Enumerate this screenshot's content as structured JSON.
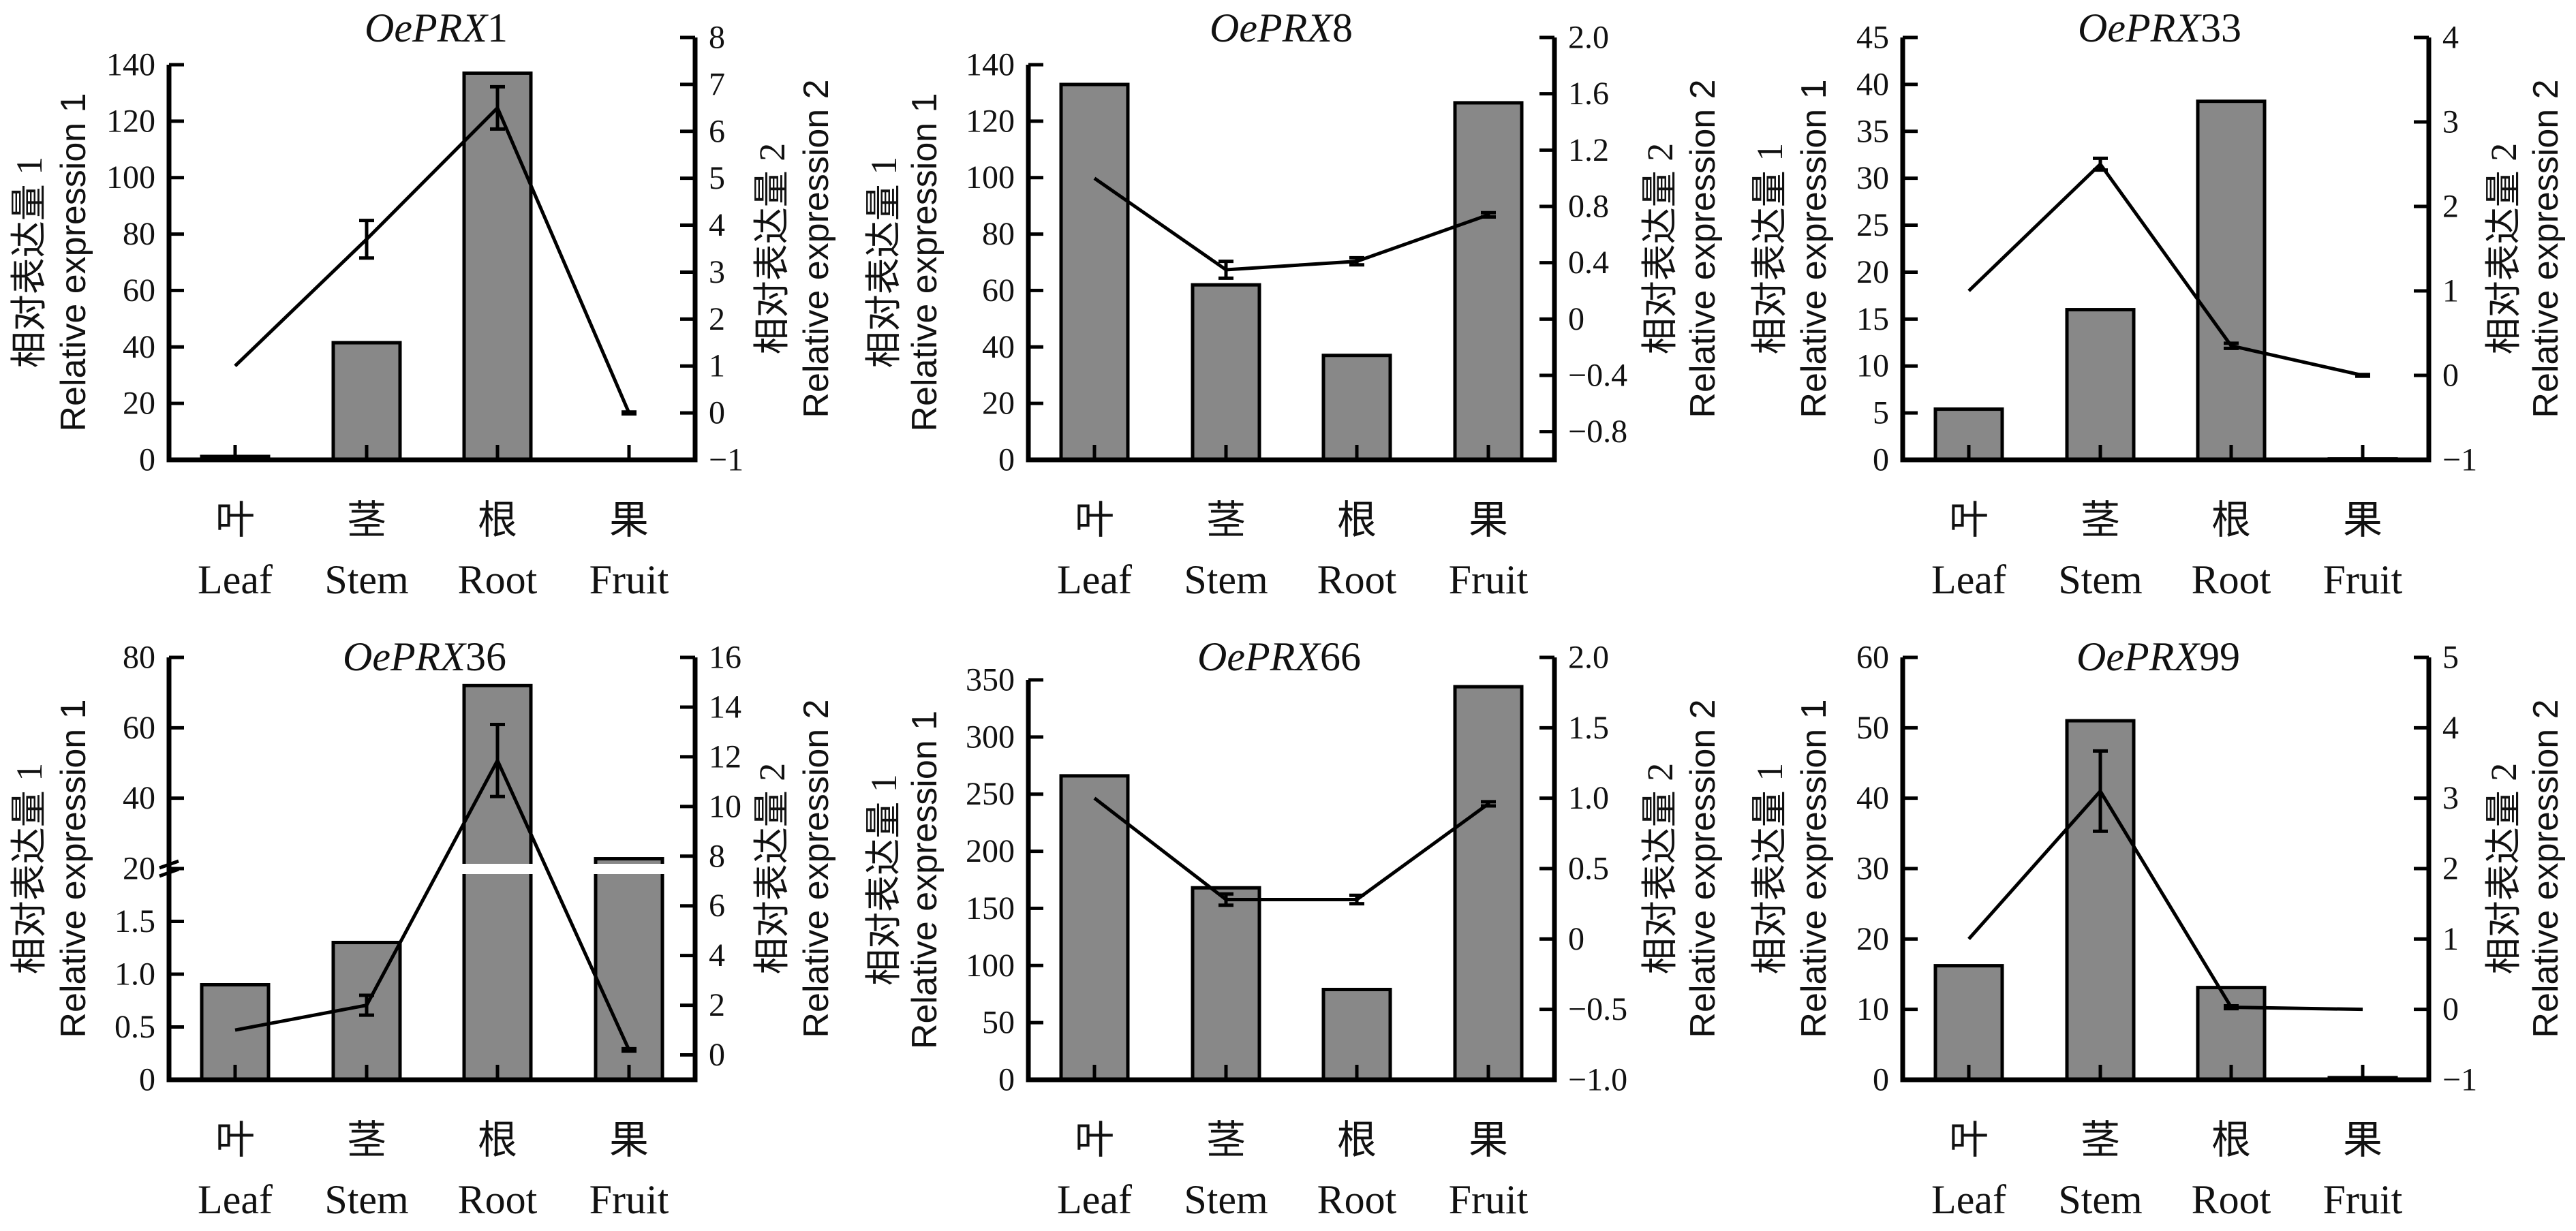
{
  "figure": {
    "background": "#ffffff",
    "bar_color": "#888888",
    "line_color": "#000000"
  },
  "categories": {
    "cn": [
      "叶",
      "茎",
      "根",
      "果"
    ],
    "en": [
      "Leaf",
      "Stem",
      "Root",
      "Fruit"
    ]
  },
  "axis_titles": {
    "left_cn": "相对表达量 1",
    "left_en": "Relative expression 1",
    "right_cn": "相对表达量 2",
    "right_en": "Relative expression 2"
  },
  "chart_data": [
    {
      "type": "bar",
      "title_prefix": "OePRX",
      "title_number": "1",
      "categories": [
        "Leaf",
        "Stem",
        "Root",
        "Fruit"
      ],
      "series": [
        {
          "name": "Relative expression 1",
          "type": "bar",
          "axis": "left",
          "values": [
            1.2,
            41.5,
            137,
            0
          ]
        },
        {
          "name": "Relative expression 2",
          "type": "line",
          "axis": "right",
          "values": [
            1.0,
            3.7,
            6.5,
            0.0
          ],
          "error": [
            0,
            0.4,
            0.45,
            0.02
          ]
        }
      ],
      "y_left": {
        "range": [
          0,
          140
        ],
        "ticks": [
          0,
          20,
          40,
          60,
          80,
          100,
          120,
          140
        ],
        "tick_labels": [
          "0",
          "20",
          "40",
          "60",
          "80",
          "100",
          "120",
          "140"
        ]
      },
      "y_right": {
        "range": [
          -1,
          8
        ],
        "ticks": [
          -1,
          0,
          1,
          2,
          3,
          4,
          5,
          6,
          7,
          8
        ],
        "tick_labels": [
          "−1",
          "0",
          "1",
          "2",
          "3",
          "4",
          "5",
          "6",
          "7",
          "8"
        ]
      }
    },
    {
      "type": "bar",
      "title_prefix": "OePRX",
      "title_number": "8",
      "categories": [
        "Leaf",
        "Stem",
        "Root",
        "Fruit"
      ],
      "series": [
        {
          "name": "Relative expression 1",
          "type": "bar",
          "axis": "left",
          "values": [
            133,
            62,
            37,
            126.5
          ]
        },
        {
          "name": "Relative expression 2",
          "type": "line",
          "axis": "right",
          "values": [
            1.0,
            0.35,
            0.41,
            0.74
          ],
          "error": [
            0,
            0.06,
            0.025,
            0.015
          ]
        }
      ],
      "y_left": {
        "range": [
          0,
          140
        ],
        "ticks": [
          0,
          20,
          40,
          60,
          80,
          100,
          120,
          140
        ],
        "tick_labels": [
          "0",
          "20",
          "40",
          "60",
          "80",
          "100",
          "120",
          "140"
        ]
      },
      "y_right": {
        "range": [
          -1.0,
          2.0
        ],
        "ticks": [
          -0.8,
          -0.4,
          0,
          0.4,
          0.8,
          1.2,
          1.6,
          2.0
        ],
        "tick_labels": [
          "−0.8",
          "−0.4",
          "0",
          "0.4",
          "0.8",
          "1.2",
          "1.6",
          "2.0"
        ]
      }
    },
    {
      "type": "bar",
      "title_prefix": "OePRX",
      "title_number": "33",
      "categories": [
        "Leaf",
        "Stem",
        "Root",
        "Fruit"
      ],
      "series": [
        {
          "name": "Relative expression 1",
          "type": "bar",
          "axis": "left",
          "values": [
            5.4,
            16.0,
            38.2,
            0.1
          ]
        },
        {
          "name": "Relative expression 2",
          "type": "line",
          "axis": "right",
          "values": [
            1.0,
            2.5,
            0.35,
            0.0
          ],
          "error": [
            0,
            0.07,
            0.03,
            0.01
          ]
        }
      ],
      "y_left": {
        "range": [
          0,
          45
        ],
        "ticks": [
          0,
          5,
          10,
          15,
          20,
          25,
          30,
          35,
          40,
          45
        ],
        "tick_labels": [
          "0",
          "5",
          "10",
          "15",
          "20",
          "25",
          "30",
          "35",
          "40",
          "45"
        ]
      },
      "y_right": {
        "range": [
          -1,
          4
        ],
        "ticks": [
          -1,
          0,
          1,
          2,
          3,
          4
        ],
        "tick_labels": [
          "−1",
          "0",
          "1",
          "2",
          "3",
          "4"
        ]
      }
    },
    {
      "type": "bar",
      "title_prefix": "OePRX",
      "title_number": "36",
      "categories": [
        "Leaf",
        "Stem",
        "Root",
        "Fruit"
      ],
      "series": [
        {
          "name": "Relative expression 1",
          "type": "bar",
          "axis": "left",
          "values": [
            0.9,
            1.3,
            72,
            22.8
          ]
        },
        {
          "name": "Relative expression 2",
          "type": "line",
          "axis": "right",
          "values": [
            1.0,
            2.0,
            11.85,
            0.2
          ],
          "error": [
            0,
            0.4,
            1.45,
            0.05
          ]
        }
      ],
      "y_left": {
        "range": [
          0,
          80
        ],
        "break": {
          "lower": [
            0,
            2
          ],
          "upper": [
            20,
            80
          ]
        },
        "ticks": [
          0,
          0.5,
          1.0,
          1.5,
          20,
          40,
          60,
          80
        ],
        "tick_labels": [
          "0",
          "0.5",
          "1.0",
          "1.5",
          "20",
          "40",
          "60",
          "80"
        ]
      },
      "y_right": {
        "range": [
          -1,
          16
        ],
        "ticks": [
          0,
          2,
          4,
          6,
          8,
          10,
          12,
          14,
          16
        ],
        "tick_labels": [
          "0",
          "2",
          "4",
          "6",
          "8",
          "10",
          "12",
          "14",
          "16"
        ]
      }
    },
    {
      "type": "bar",
      "title_prefix": "OePRX",
      "title_number": "66",
      "categories": [
        "Leaf",
        "Stem",
        "Root",
        "Fruit"
      ],
      "series": [
        {
          "name": "Relative expression 1",
          "type": "bar",
          "axis": "left",
          "values": [
            266,
            168,
            79,
            344
          ]
        },
        {
          "name": "Relative expression 2",
          "type": "line",
          "axis": "right",
          "values": [
            1.0,
            0.28,
            0.28,
            0.96
          ],
          "error": [
            0,
            0.04,
            0.03,
            0.015
          ]
        }
      ],
      "y_left": {
        "range": [
          0,
          350
        ],
        "ticks": [
          0,
          50,
          100,
          150,
          200,
          250,
          300,
          350
        ],
        "tick_labels": [
          "0",
          "50",
          "100",
          "150",
          "200",
          "250",
          "300",
          "350"
        ]
      },
      "y_right": {
        "range": [
          -1.0,
          2.0
        ],
        "ticks": [
          -1.0,
          -0.5,
          0,
          0.5,
          1.0,
          1.5,
          2.0
        ],
        "tick_labels": [
          "−1.0",
          "−0.5",
          "0",
          "0.5",
          "1.0",
          "1.5",
          "2.0"
        ]
      }
    },
    {
      "type": "bar",
      "title_prefix": "OePRX",
      "title_number": "99",
      "categories": [
        "Leaf",
        "Stem",
        "Root",
        "Fruit"
      ],
      "series": [
        {
          "name": "Relative expression 1",
          "type": "bar",
          "axis": "left",
          "values": [
            16.2,
            51,
            13.1,
            0.3
          ]
        },
        {
          "name": "Relative expression 2",
          "type": "line",
          "axis": "right",
          "values": [
            1.0,
            3.1,
            0.03,
            0.0
          ],
          "error": [
            0,
            0.57,
            0.02,
            0
          ]
        }
      ],
      "y_left": {
        "range": [
          0,
          60
        ],
        "ticks": [
          0,
          10,
          20,
          30,
          40,
          50,
          60
        ],
        "tick_labels": [
          "0",
          "10",
          "20",
          "30",
          "40",
          "50",
          "60"
        ]
      },
      "y_right": {
        "range": [
          -1,
          5
        ],
        "ticks": [
          -1,
          0,
          1,
          2,
          3,
          4,
          5
        ],
        "tick_labels": [
          "−1",
          "0",
          "1",
          "2",
          "3",
          "4",
          "5"
        ]
      }
    }
  ]
}
